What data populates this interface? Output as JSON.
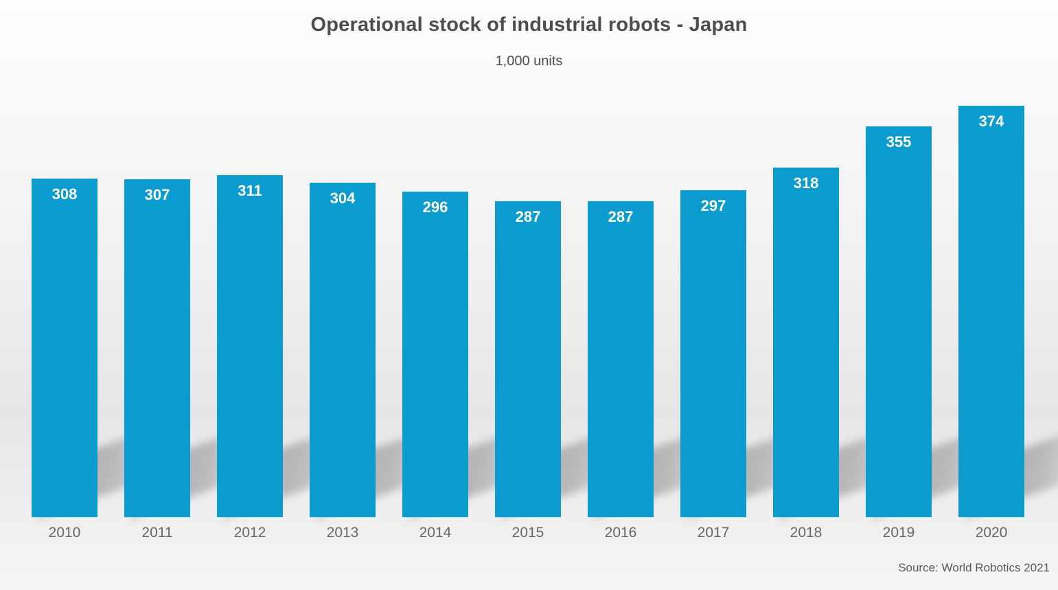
{
  "chart_data": {
    "type": "bar",
    "title": "Operational stock of industrial robots - Japan",
    "subtitle": "1,000 units",
    "source": "Source: World Robotics 2021",
    "categories": [
      "2010",
      "2011",
      "2012",
      "2013",
      "2014",
      "2015",
      "2016",
      "2017",
      "2018",
      "2019",
      "2020"
    ],
    "values": [
      308,
      307,
      311,
      304,
      296,
      287,
      287,
      297,
      318,
      355,
      374
    ],
    "xlabel": "",
    "ylabel": "1,000 units",
    "ylim": [
      0,
      374
    ],
    "grid": false,
    "legend": "none",
    "value_labels": "inside-top",
    "bar_color": "#0a9cce",
    "value_label_color": "#ffffff",
    "title_color": "#4d4d4d",
    "axis_label_color": "#666666",
    "shadow_style": "perspective-diagonal"
  }
}
